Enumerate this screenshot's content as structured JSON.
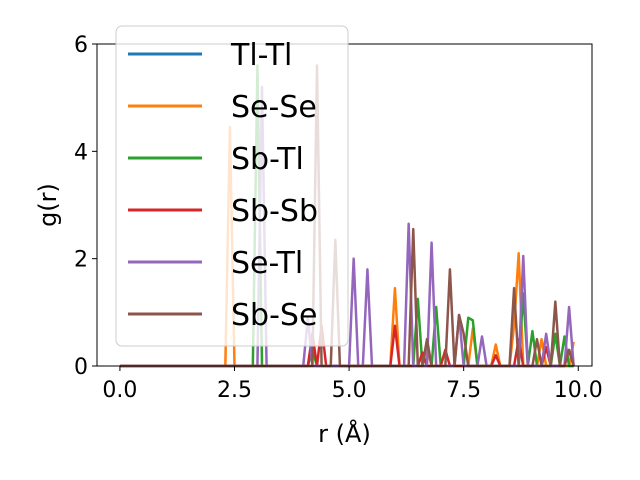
{
  "chart_data": {
    "type": "line",
    "xlabel": "r (Å)",
    "ylabel": "g(r)",
    "xlim": [
      -0.5,
      10.3
    ],
    "ylim": [
      0,
      6
    ],
    "xticks": [
      0.0,
      2.5,
      5.0,
      7.5,
      10.0
    ],
    "xtick_labels": [
      "0.0",
      "2.5",
      "5.0",
      "7.5",
      "10.0"
    ],
    "yticks": [
      0,
      2,
      4,
      6
    ],
    "ytick_labels": [
      "0",
      "2",
      "4",
      "6"
    ],
    "grid": false,
    "legend_position": "top-left",
    "x_grid": {
      "start": 0.0,
      "stop": 9.9,
      "step": 0.1
    },
    "series": [
      {
        "name": "Tl-Tl",
        "color": "#1f77b4",
        "peaks": []
      },
      {
        "name": "Se-Se",
        "color": "#ff7f0e",
        "peaks": [
          [
            2.4,
            4.45
          ],
          [
            6.0,
            1.45
          ],
          [
            6.7,
            0.35
          ],
          [
            7.7,
            0.7
          ],
          [
            8.2,
            0.4
          ],
          [
            8.6,
            0.75
          ],
          [
            8.7,
            2.1
          ],
          [
            9.2,
            0.5
          ],
          [
            9.9,
            0.45
          ]
        ]
      },
      {
        "name": "Sb-Tl",
        "color": "#2ca02c",
        "peaks": [
          [
            3.0,
            5.6
          ],
          [
            4.2,
            0.3
          ],
          [
            6.5,
            1.25
          ],
          [
            6.9,
            1.1
          ],
          [
            7.6,
            0.9
          ],
          [
            7.7,
            0.85
          ],
          [
            8.8,
            1.35
          ],
          [
            9.0,
            0.65
          ],
          [
            9.5,
            0.6
          ],
          [
            9.7,
            0.55
          ]
        ]
      },
      {
        "name": "Sb-Sb",
        "color": "#d62728",
        "peaks": [
          [
            4.2,
            0.6
          ],
          [
            4.4,
            0.75
          ],
          [
            6.0,
            0.75
          ],
          [
            6.6,
            0.25
          ],
          [
            7.1,
            0.3
          ],
          [
            8.2,
            0.2
          ],
          [
            8.7,
            0.5
          ],
          [
            9.3,
            0.35
          ],
          [
            9.8,
            0.3
          ]
        ]
      },
      {
        "name": "Se-Tl",
        "color": "#9467bd",
        "peaks": [
          [
            3.1,
            5.2
          ],
          [
            4.1,
            0.9
          ],
          [
            5.1,
            2.0
          ],
          [
            5.4,
            1.8
          ],
          [
            6.3,
            2.65
          ],
          [
            6.8,
            2.3
          ],
          [
            7.4,
            0.95
          ],
          [
            7.9,
            0.55
          ],
          [
            8.8,
            2.05
          ],
          [
            9.3,
            0.6
          ],
          [
            9.8,
            1.1
          ]
        ]
      },
      {
        "name": "Sb-Se",
        "color": "#8c564b",
        "peaks": [
          [
            4.3,
            5.6
          ],
          [
            4.7,
            2.35
          ],
          [
            6.4,
            2.55
          ],
          [
            6.7,
            0.5
          ],
          [
            7.2,
            1.8
          ],
          [
            7.4,
            0.95
          ],
          [
            7.5,
            0.6
          ],
          [
            8.6,
            1.45
          ],
          [
            9.1,
            0.5
          ],
          [
            9.5,
            1.2
          ],
          [
            9.8,
            0.3
          ]
        ]
      }
    ]
  }
}
